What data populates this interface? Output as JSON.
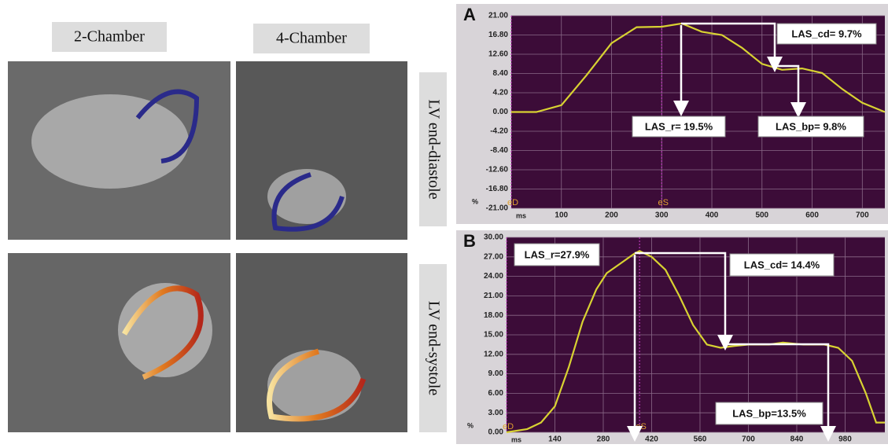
{
  "view_labels": [
    "2-Chamber",
    "4-Chamber"
  ],
  "phase_labels": [
    "LV end-diastole",
    "LV end-systole"
  ],
  "chart_data": [
    {
      "type": "line",
      "panel_label": "A",
      "x_label": "ms",
      "y_label": "%",
      "color": "#d8d232",
      "grid": true,
      "x": [
        0,
        50,
        100,
        150,
        200,
        250,
        300,
        340,
        380,
        420,
        460,
        500,
        540,
        580,
        620,
        660,
        700,
        745
      ],
      "values": [
        0,
        0,
        1.5,
        8,
        15,
        18.5,
        18.6,
        19.3,
        17.5,
        16.8,
        14,
        10.5,
        9.2,
        9.5,
        8.5,
        5,
        2,
        0
      ],
      "xlim": [
        0,
        745
      ],
      "xticks": [
        100,
        200,
        300,
        400,
        500,
        600,
        700
      ],
      "ylim": [
        -21,
        21
      ],
      "yticks": [
        {
          "value": 21,
          "label": "21.00"
        },
        {
          "value": 16.8,
          "label": "16.80"
        },
        {
          "value": 12.6,
          "label": "12.60"
        },
        {
          "value": 8.4,
          "label": "8.40"
        },
        {
          "value": 4.2,
          "label": "4.20"
        },
        {
          "value": 0,
          "label": "0.00"
        },
        {
          "value": -4.2,
          "label": "-4.20"
        },
        {
          "value": -8.4,
          "label": "-8.40"
        },
        {
          "value": -12.6,
          "label": "-12.60"
        },
        {
          "value": -16.8,
          "label": "-16.80"
        },
        {
          "value": -21,
          "label": "-21.00"
        }
      ],
      "events": [
        {
          "value": 0,
          "label": "eD"
        },
        {
          "value": 300,
          "label": "eS"
        }
      ],
      "annotations": [
        "LAS_cd= 9.7%",
        "LAS_r= 19.5%",
        "LAS_bp= 9.8%"
      ]
    },
    {
      "type": "line",
      "panel_label": "B",
      "x_label": "ms",
      "y_label": "%",
      "color": "#d8d232",
      "grid": true,
      "x": [
        0,
        60,
        100,
        140,
        180,
        220,
        260,
        290,
        330,
        370,
        385,
        420,
        460,
        500,
        540,
        580,
        620,
        660,
        700,
        760,
        800,
        860,
        920,
        960,
        1000,
        1040,
        1070,
        1095
      ],
      "values": [
        0,
        0.5,
        1.5,
        4,
        10,
        17,
        22,
        24.5,
        26,
        27.5,
        27.9,
        27,
        25,
        21,
        16.5,
        13.5,
        13,
        13.3,
        13.5,
        13.5,
        13.8,
        13.5,
        13.5,
        13,
        11,
        6,
        1.5,
        1.5
      ],
      "xlim": [
        0,
        1095
      ],
      "xticks": [
        140,
        280,
        420,
        560,
        700,
        840,
        980
      ],
      "ylim": [
        0,
        30
      ],
      "yticks": [
        {
          "value": 30,
          "label": "30.00"
        },
        {
          "value": 27,
          "label": "27.00"
        },
        {
          "value": 24,
          "label": "24.00"
        },
        {
          "value": 21,
          "label": "21.00"
        },
        {
          "value": 18,
          "label": "18.00"
        },
        {
          "value": 15,
          "label": "15.00"
        },
        {
          "value": 12,
          "label": "12.00"
        },
        {
          "value": 9,
          "label": "9.00"
        },
        {
          "value": 6,
          "label": "6.00"
        },
        {
          "value": 3,
          "label": "3.00"
        },
        {
          "value": 0,
          "label": "0.00"
        }
      ],
      "events": [
        {
          "value": 0,
          "label": "eD"
        },
        {
          "value": 385,
          "label": "eS"
        }
      ],
      "annotations": [
        "LAS_r=27.9%",
        "LAS_cd= 14.4%",
        "LAS_bp=13.5%"
      ]
    }
  ]
}
